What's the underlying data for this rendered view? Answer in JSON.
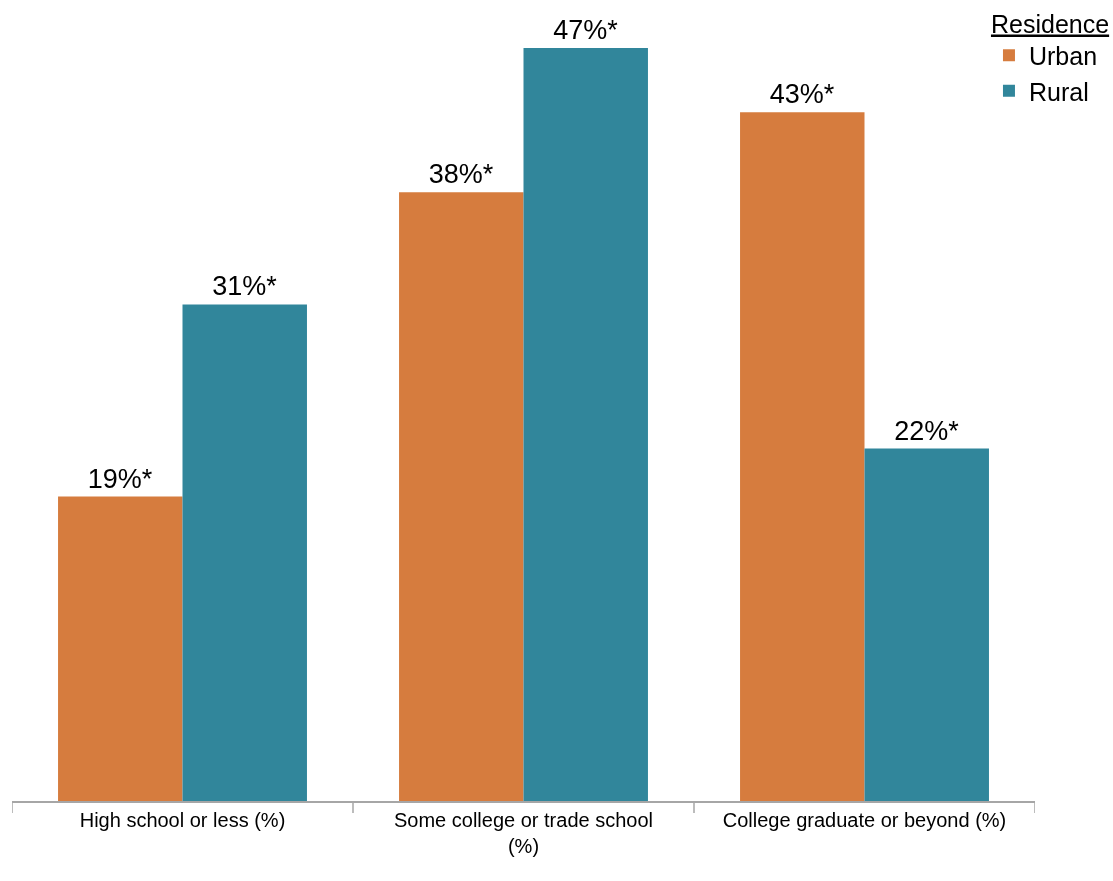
{
  "chart_data": {
    "type": "bar",
    "categories": [
      "High school or less (%)",
      "Some college or trade school (%)",
      "College graduate or beyond (%)"
    ],
    "legend_title": "Residence",
    "legend": "top right",
    "ylim": [
      0,
      50
    ],
    "tick_labels": "x",
    "series": [
      {
        "name": "Urban",
        "color": "#d67c3e",
        "values": [
          19,
          38,
          43
        ],
        "value_labels": [
          "19%*",
          "38%*",
          "43%*"
        ]
      },
      {
        "name": "Rural",
        "color": "#31869b",
        "values": [
          31,
          47,
          22
        ],
        "value_labels": [
          "31%*",
          "47%*",
          "22%*"
        ]
      }
    ]
  }
}
